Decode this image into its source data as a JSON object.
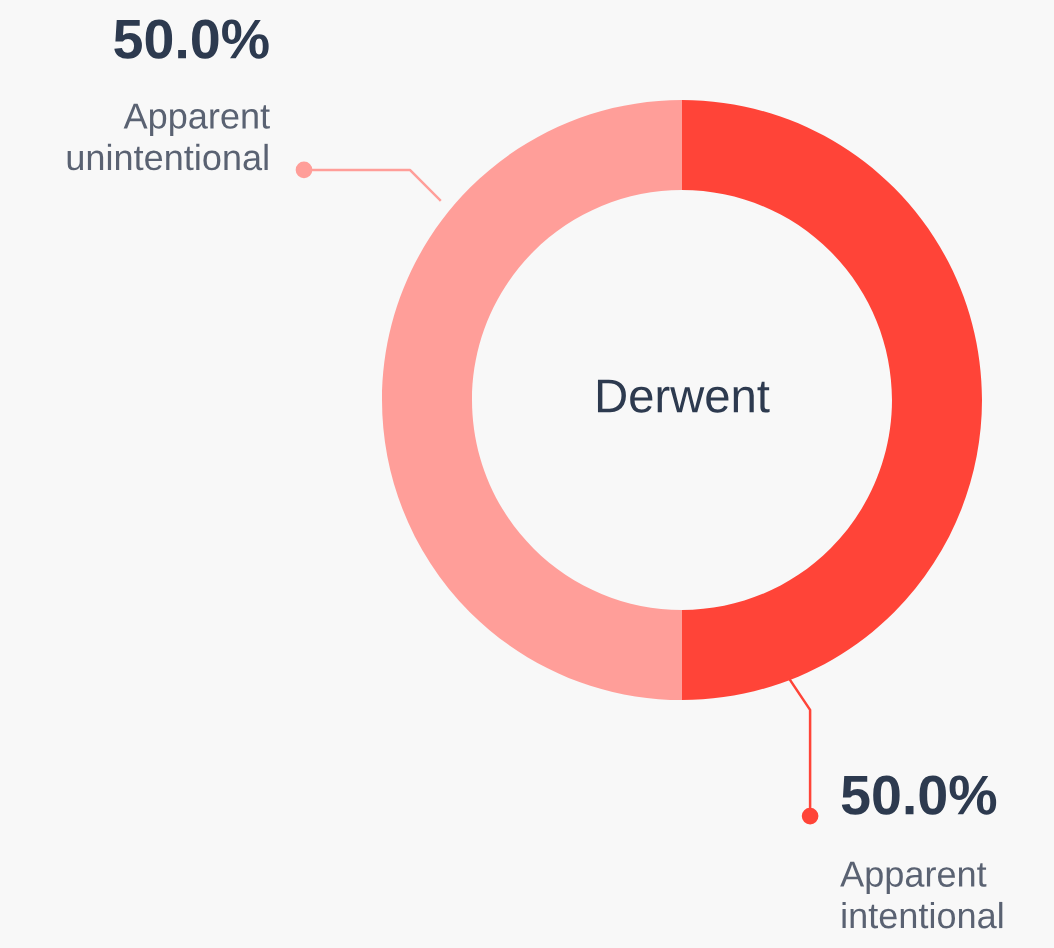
{
  "chart_data": {
    "type": "donut",
    "title": "Derwent",
    "categories": [
      "Apparent intentional",
      "Apparent unintentional"
    ],
    "values": [
      50.0,
      50.0
    ],
    "colors": [
      "#ff4438",
      "#ff9e99"
    ],
    "value_labels": [
      "50.0%",
      "50.0%"
    ]
  }
}
